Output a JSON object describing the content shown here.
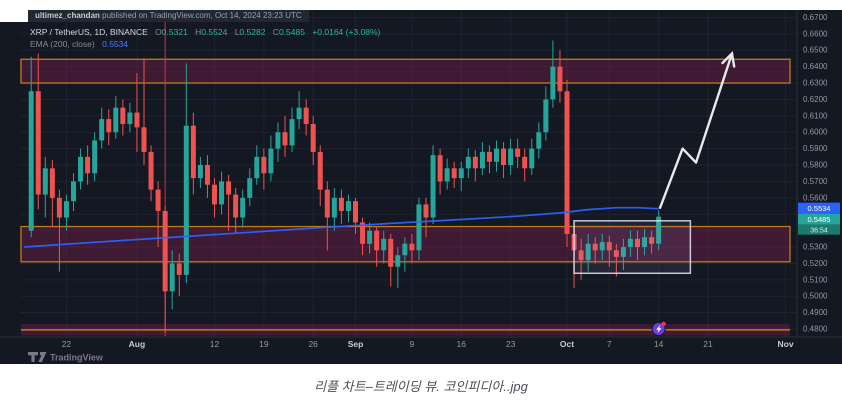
{
  "attribution": {
    "user": "ultimez_chandan",
    "rest": " published on TradingView.com, Oct 14, 2024 23:23 UTC"
  },
  "legend": {
    "symbol": "XRP / TetherUS, 1D, BINANCE",
    "o_label": "O",
    "o": "0.5321",
    "h_label": "H",
    "h": "0.5524",
    "l_label": "L",
    "l": "0.5282",
    "c_label": "C",
    "c": "0.5485",
    "change": "+0.0164 (+3.08%)",
    "ema_label": "EMA (200, close)",
    "ema_value": "0.5534"
  },
  "watermark": {
    "logo_text": "TradingView"
  },
  "caption": "리플 차트–트레이딩 뷰. 코인피디아..jpg",
  "colors": {
    "background": "#141823",
    "grid": "#1e2330",
    "up": "#26a69a",
    "down": "#ef5350",
    "zone_fill": "rgba(153,30,84,0.33)",
    "zone_border": "#c17b1a",
    "ema": "#2d62ff",
    "box_border": "rgba(230,228,245,0.85)",
    "box_fill": "rgba(180,160,230,0.10)",
    "arrow": "#e9e9ec",
    "vline": "#f23645",
    "axis_text": "#9298a4",
    "month_text": "#c7cbd4",
    "badge_ema": "#2962ff",
    "badge_price": "#26a69a",
    "badge_timer": "#1c7a6e",
    "logo_gray": "#787b86"
  },
  "chart_data": {
    "type": "candlestick",
    "symbol": "XRP/USDT",
    "timeframe": "1D",
    "exchange": "BINANCE",
    "start_date": "2024-07-17",
    "end_date": "2024-10-14",
    "last_ohlc": {
      "open": 0.5321,
      "high": 0.5524,
      "low": 0.5282,
      "close": 0.5485,
      "change": 0.0164,
      "change_pct": 3.08
    },
    "ema_200_close": 0.5534,
    "price_axis_ticks": [
      0.67,
      0.66,
      0.65,
      0.64,
      0.63,
      0.62,
      0.61,
      0.6,
      0.59,
      0.58,
      0.57,
      0.56,
      0.55,
      0.54,
      0.53,
      0.52,
      0.51,
      0.5,
      0.49,
      0.48
    ],
    "time_axis_ticks": [
      {
        "label": "22",
        "day": 5,
        "month": false
      },
      {
        "label": "Aug",
        "day": 15,
        "month": true
      },
      {
        "label": "12",
        "day": 26,
        "month": false
      },
      {
        "label": "19",
        "day": 33,
        "month": false
      },
      {
        "label": "26",
        "day": 40,
        "month": false
      },
      {
        "label": "Sep",
        "day": 46,
        "month": true
      },
      {
        "label": "9",
        "day": 54,
        "month": false
      },
      {
        "label": "16",
        "day": 61,
        "month": false
      },
      {
        "label": "23",
        "day": 68,
        "month": false
      },
      {
        "label": "Oct",
        "day": 76,
        "month": true
      },
      {
        "label": "7",
        "day": 82,
        "month": false
      },
      {
        "label": "14",
        "day": 89,
        "month": false
      },
      {
        "label": "21",
        "day": 96,
        "month": false
      },
      {
        "label": "Nov",
        "day": 107,
        "month": true
      }
    ],
    "candles": [
      [
        0.54,
        0.646,
        0.536,
        0.625
      ],
      [
        0.625,
        0.648,
        0.553,
        0.562
      ],
      [
        0.562,
        0.585,
        0.548,
        0.578
      ],
      [
        0.578,
        0.583,
        0.542,
        0.56
      ],
      [
        0.56,
        0.565,
        0.515,
        0.548
      ],
      [
        0.548,
        0.562,
        0.54,
        0.558
      ],
      [
        0.558,
        0.575,
        0.552,
        0.57
      ],
      [
        0.57,
        0.59,
        0.565,
        0.585
      ],
      [
        0.585,
        0.592,
        0.568,
        0.575
      ],
      [
        0.575,
        0.6,
        0.57,
        0.595
      ],
      [
        0.595,
        0.615,
        0.59,
        0.608
      ],
      [
        0.608,
        0.614,
        0.592,
        0.6
      ],
      [
        0.6,
        0.622,
        0.596,
        0.615
      ],
      [
        0.615,
        0.62,
        0.598,
        0.605
      ],
      [
        0.605,
        0.618,
        0.6,
        0.612
      ],
      [
        0.612,
        0.636,
        0.588,
        0.603
      ],
      [
        0.603,
        0.645,
        0.58,
        0.588
      ],
      [
        0.588,
        0.592,
        0.558,
        0.565
      ],
      [
        0.565,
        0.57,
        0.53,
        0.552
      ],
      [
        0.552,
        0.555,
        0.478,
        0.503
      ],
      [
        0.503,
        0.528,
        0.492,
        0.52
      ],
      [
        0.52,
        0.526,
        0.5,
        0.513
      ],
      [
        0.513,
        0.642,
        0.508,
        0.604
      ],
      [
        0.604,
        0.612,
        0.562,
        0.572
      ],
      [
        0.572,
        0.585,
        0.566,
        0.58
      ],
      [
        0.58,
        0.586,
        0.56,
        0.568
      ],
      [
        0.568,
        0.572,
        0.548,
        0.556
      ],
      [
        0.556,
        0.576,
        0.55,
        0.57
      ],
      [
        0.57,
        0.574,
        0.54,
        0.562
      ],
      [
        0.562,
        0.566,
        0.538,
        0.548
      ],
      [
        0.548,
        0.565,
        0.542,
        0.56
      ],
      [
        0.56,
        0.578,
        0.555,
        0.572
      ],
      [
        0.572,
        0.592,
        0.568,
        0.585
      ],
      [
        0.585,
        0.59,
        0.565,
        0.575
      ],
      [
        0.575,
        0.598,
        0.57,
        0.59
      ],
      [
        0.59,
        0.606,
        0.582,
        0.6
      ],
      [
        0.6,
        0.61,
        0.585,
        0.592
      ],
      [
        0.592,
        0.615,
        0.588,
        0.608
      ],
      [
        0.608,
        0.625,
        0.602,
        0.615
      ],
      [
        0.615,
        0.62,
        0.598,
        0.605
      ],
      [
        0.605,
        0.61,
        0.58,
        0.588
      ],
      [
        0.588,
        0.592,
        0.555,
        0.565
      ],
      [
        0.565,
        0.57,
        0.528,
        0.548
      ],
      [
        0.548,
        0.566,
        0.54,
        0.56
      ],
      [
        0.56,
        0.565,
        0.544,
        0.552
      ],
      [
        0.552,
        0.562,
        0.545,
        0.558
      ],
      [
        0.558,
        0.56,
        0.538,
        0.545
      ],
      [
        0.545,
        0.548,
        0.525,
        0.532
      ],
      [
        0.532,
        0.545,
        0.526,
        0.54
      ],
      [
        0.54,
        0.542,
        0.518,
        0.528
      ],
      [
        0.528,
        0.54,
        0.52,
        0.535
      ],
      [
        0.535,
        0.538,
        0.506,
        0.518
      ],
      [
        0.518,
        0.53,
        0.505,
        0.525
      ],
      [
        0.525,
        0.536,
        0.515,
        0.532
      ],
      [
        0.532,
        0.538,
        0.52,
        0.528
      ],
      [
        0.528,
        0.56,
        0.522,
        0.556
      ],
      [
        0.556,
        0.56,
        0.536,
        0.548
      ],
      [
        0.548,
        0.592,
        0.544,
        0.586
      ],
      [
        0.586,
        0.59,
        0.562,
        0.57
      ],
      [
        0.57,
        0.584,
        0.565,
        0.578
      ],
      [
        0.578,
        0.582,
        0.566,
        0.572
      ],
      [
        0.572,
        0.582,
        0.564,
        0.578
      ],
      [
        0.578,
        0.59,
        0.572,
        0.585
      ],
      [
        0.585,
        0.589,
        0.57,
        0.578
      ],
      [
        0.578,
        0.594,
        0.574,
        0.588
      ],
      [
        0.588,
        0.592,
        0.575,
        0.582
      ],
      [
        0.582,
        0.595,
        0.576,
        0.59
      ],
      [
        0.59,
        0.594,
        0.572,
        0.58
      ],
      [
        0.58,
        0.596,
        0.574,
        0.59
      ],
      [
        0.59,
        0.596,
        0.578,
        0.585
      ],
      [
        0.585,
        0.59,
        0.57,
        0.578
      ],
      [
        0.578,
        0.596,
        0.574,
        0.59
      ],
      [
        0.59,
        0.606,
        0.584,
        0.6
      ],
      [
        0.6,
        0.628,
        0.595,
        0.62
      ],
      [
        0.62,
        0.656,
        0.615,
        0.64
      ],
      [
        0.64,
        0.65,
        0.618,
        0.625
      ],
      [
        0.625,
        0.632,
        0.53,
        0.538
      ],
      [
        0.538,
        0.545,
        0.505,
        0.528
      ],
      [
        0.528,
        0.535,
        0.51,
        0.522
      ],
      [
        0.522,
        0.538,
        0.515,
        0.532
      ],
      [
        0.532,
        0.536,
        0.52,
        0.528
      ],
      [
        0.528,
        0.538,
        0.522,
        0.533
      ],
      [
        0.533,
        0.537,
        0.518,
        0.528
      ],
      [
        0.528,
        0.532,
        0.512,
        0.524
      ],
      [
        0.524,
        0.535,
        0.516,
        0.53
      ],
      [
        0.53,
        0.54,
        0.524,
        0.535
      ],
      [
        0.535,
        0.54,
        0.522,
        0.53
      ],
      [
        0.53,
        0.541,
        0.525,
        0.536
      ],
      [
        0.536,
        0.54,
        0.526,
        0.532
      ],
      [
        0.5321,
        0.5524,
        0.5282,
        0.5485
      ]
    ],
    "ema_points": [
      [
        -1,
        0.53
      ],
      [
        10,
        0.5332
      ],
      [
        21,
        0.5362
      ],
      [
        31,
        0.539
      ],
      [
        41,
        0.5418
      ],
      [
        51,
        0.5444
      ],
      [
        61,
        0.5468
      ],
      [
        69,
        0.5488
      ],
      [
        75,
        0.5508
      ],
      [
        79,
        0.5528
      ],
      [
        83,
        0.554
      ],
      [
        86,
        0.554
      ],
      [
        89,
        0.5534
      ]
    ],
    "zones": [
      {
        "name": "supply-zone",
        "top": 0.6445,
        "bottom": 0.63
      },
      {
        "name": "demand-zone",
        "top": 0.5425,
        "bottom": 0.521
      }
    ],
    "lower_band": {
      "top": 0.483,
      "bottom": 0.476,
      "line": 0.4795
    },
    "crash_vline_day": 19,
    "consolidation_box": {
      "day_start": 77,
      "day_end": 93.5,
      "top": 0.546,
      "bottom": 0.514
    },
    "arrow_points": [
      [
        89.2,
        0.554
      ],
      [
        92.4,
        0.59
      ],
      [
        94.3,
        0.5815
      ],
      [
        99.4,
        0.648
      ]
    ],
    "event_marker_day": 89,
    "badges": {
      "ema": "0.5534",
      "last_price": "0.5485",
      "countdown": "36:54"
    },
    "legend_title": "XRP / TetherUS, 1D, BINANCE",
    "grid": true,
    "price_range_visible": [
      0.475,
      0.674
    ]
  }
}
